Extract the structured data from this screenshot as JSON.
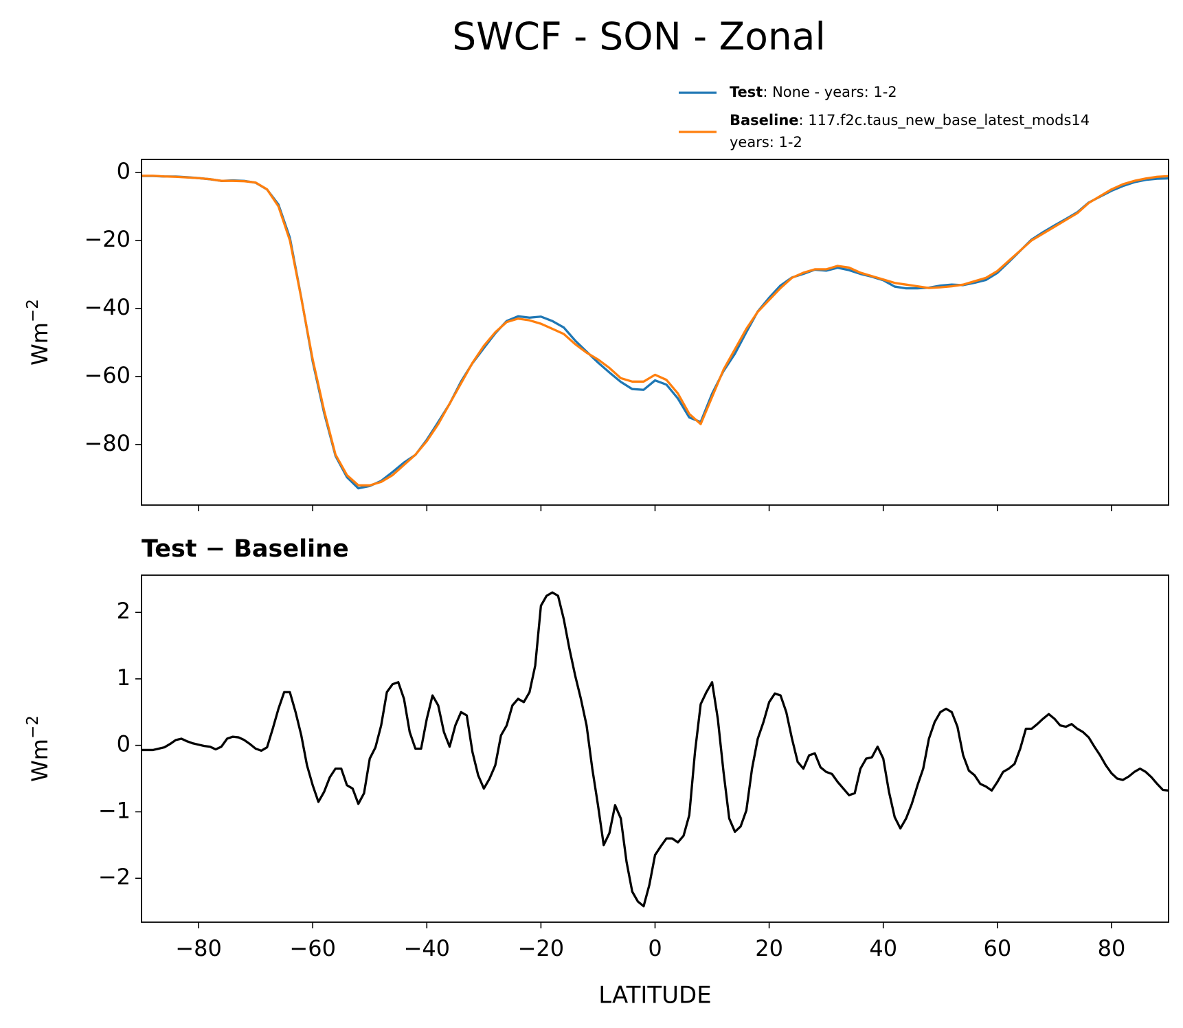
{
  "chart_data": [
    {
      "type": "line",
      "title": "SWCF - SON - Zonal",
      "ylabel": {
        "base": "Wm",
        "sup": "−2"
      },
      "x": [
        -90,
        -88,
        -86,
        -84,
        -82,
        -80,
        -78,
        -76,
        -74,
        -72,
        -70,
        -68,
        -66,
        -64,
        -62,
        -60,
        -58,
        -56,
        -54,
        -52,
        -50,
        -48,
        -46,
        -44,
        -42,
        -40,
        -38,
        -36,
        -34,
        -32,
        -30,
        -28,
        -26,
        -24,
        -22,
        -20,
        -18,
        -16,
        -14,
        -12,
        -10,
        -8,
        -6,
        -4,
        -2,
        0,
        2,
        4,
        6,
        8,
        10,
        12,
        14,
        16,
        18,
        20,
        22,
        24,
        26,
        28,
        30,
        32,
        34,
        36,
        38,
        40,
        42,
        44,
        46,
        48,
        50,
        52,
        54,
        56,
        58,
        60,
        62,
        64,
        66,
        68,
        70,
        72,
        74,
        76,
        78,
        80,
        82,
        84,
        86,
        88,
        90
      ],
      "series": [
        {
          "name": "Test",
          "label": [
            ": None - years: 1-2"
          ],
          "color": "#1f77b4",
          "values": [
            -1.07,
            -1.07,
            -1.23,
            -1.22,
            -1.44,
            -1.69,
            -2.02,
            -2.52,
            -2.37,
            -2.52,
            -3.05,
            -5.03,
            -9.45,
            -19.2,
            -36.85,
            -55.6,
            -70.7,
            -83.35,
            -89.6,
            -92.88,
            -92.2,
            -90.7,
            -88.08,
            -85.3,
            -83.05,
            -78.6,
            -73.4,
            -68.02,
            -61.5,
            -56.1,
            -51.65,
            -47.3,
            -43.7,
            -42.3,
            -42.7,
            -42.4,
            -43.7,
            -45.6,
            -49.45,
            -52.7,
            -55.9,
            -58.82,
            -61.6,
            -63.7,
            -63.92,
            -61.15,
            -62.4,
            -66.46,
            -72.05,
            -73.38,
            -65.05,
            -58.4,
            -53.3,
            -46.98,
            -40.9,
            -36.85,
            -33.25,
            -30.9,
            -29.85,
            -28.62,
            -28.9,
            -28.05,
            -28.75,
            -29.85,
            -30.68,
            -31.7,
            -33.58,
            -34.1,
            -34.1,
            -33.9,
            -33.3,
            -33,
            -33.15,
            -32.45,
            -31.62,
            -29.55,
            -26.35,
            -23.05,
            -19.75,
            -17.6,
            -15.6,
            -13.72,
            -11.75,
            -8.88,
            -7.15,
            -5.42,
            -4.02,
            -2.9,
            -2.2,
            -1.88,
            -1.78
          ]
        },
        {
          "name": "Baseline",
          "label": [
            ": 117.f2c.taus_new_base_latest_mods14",
            "years: 1-2"
          ],
          "color": "#ff7f0e",
          "values": [
            -1,
            -1,
            -1.2,
            -1.3,
            -1.5,
            -1.7,
            -2,
            -2.5,
            -2.5,
            -2.6,
            -3,
            -5,
            -10,
            -20,
            -37,
            -55,
            -70,
            -83,
            -89,
            -92,
            -92,
            -91,
            -89,
            -86,
            -83,
            -79,
            -74,
            -68,
            -62,
            -56,
            -51,
            -47,
            -44,
            -43,
            -43.5,
            -44.5,
            -46,
            -47.5,
            -50.5,
            -53,
            -55,
            -57.5,
            -60.5,
            -61.5,
            -61.5,
            -59.5,
            -61,
            -65,
            -71,
            -74,
            -66,
            -58,
            -52,
            -46,
            -41,
            -37.5,
            -34,
            -31,
            -29.5,
            -28.5,
            -28.5,
            -27.5,
            -28,
            -29.5,
            -30.5,
            -31.5,
            -32.5,
            -33,
            -33.5,
            -34,
            -33.8,
            -33.5,
            -33,
            -32,
            -31,
            -29,
            -26,
            -23,
            -20,
            -18,
            -16,
            -14,
            -12,
            -9,
            -7,
            -5,
            -3.5,
            -2.5,
            -1.8,
            -1.3,
            -1.1
          ]
        }
      ],
      "xlim": [
        -90,
        90
      ],
      "xticks": [
        -80,
        -60,
        -40,
        -20,
        0,
        20,
        40,
        60,
        80
      ],
      "xticklabels": false,
      "ylim": [
        -97.8,
        3.8
      ],
      "yticks": [
        0,
        {
          "value": -20,
          "label": "−20"
        },
        {
          "value": -40,
          "label": "−40"
        },
        {
          "value": -60,
          "label": "−60"
        },
        {
          "value": -80,
          "label": "−80"
        }
      ]
    },
    {
      "type": "line",
      "title": "Test − Baseline",
      "xlabel": "LATITUDE",
      "ylabel": {
        "base": "Wm",
        "sup": "−2"
      },
      "x": [
        -90,
        -89,
        -88,
        -87,
        -86,
        -85,
        -84,
        -83,
        -82,
        -81,
        -80,
        -79,
        -78,
        -77,
        -76,
        -75,
        -74,
        -73,
        -72,
        -71,
        -70,
        -69,
        -68,
        -67,
        -66,
        -65,
        -64,
        -63,
        -62,
        -61,
        -60,
        -59,
        -58,
        -57,
        -56,
        -55,
        -54,
        -53,
        -52,
        -51,
        -50,
        -49,
        -48,
        -47,
        -46,
        -45,
        -44,
        -43,
        -42,
        -41,
        -40,
        -39,
        -38,
        -37,
        -36,
        -35,
        -34,
        -33,
        -32,
        -31,
        -30,
        -29,
        -28,
        -27,
        -26,
        -25,
        -24,
        -23,
        -22,
        -21,
        -20,
        -19,
        -18,
        -17,
        -16,
        -15,
        -14,
        -13,
        -12,
        -11,
        -10,
        -9,
        -8,
        -7,
        -6,
        -5,
        -4,
        -3,
        -2,
        -1,
        0,
        1,
        2,
        3,
        4,
        5,
        6,
        7,
        8,
        9,
        10,
        11,
        12,
        13,
        14,
        15,
        16,
        17,
        18,
        19,
        20,
        21,
        22,
        23,
        24,
        25,
        26,
        27,
        28,
        29,
        30,
        31,
        32,
        33,
        34,
        35,
        36,
        37,
        38,
        39,
        40,
        41,
        42,
        43,
        44,
        45,
        46,
        47,
        48,
        49,
        50,
        51,
        52,
        53,
        54,
        55,
        56,
        57,
        58,
        59,
        60,
        61,
        62,
        63,
        64,
        65,
        66,
        67,
        68,
        69,
        70,
        71,
        72,
        73,
        74,
        75,
        76,
        77,
        78,
        79,
        80,
        81,
        82,
        83,
        84,
        85,
        86,
        87,
        88,
        89,
        90
      ],
      "color": "#000000",
      "values": [
        -0.07,
        -0.07,
        -0.07,
        -0.05,
        -0.03,
        0.02,
        0.08,
        0.1,
        0.06,
        0.03,
        0.01,
        -0.01,
        -0.02,
        -0.06,
        -0.02,
        0.1,
        0.13,
        0.12,
        0.08,
        0.02,
        -0.05,
        -0.08,
        -0.03,
        0.25,
        0.55,
        0.8,
        0.8,
        0.5,
        0.15,
        -0.3,
        -0.6,
        -0.85,
        -0.7,
        -0.48,
        -0.35,
        -0.35,
        -0.6,
        -0.65,
        -0.88,
        -0.72,
        -0.2,
        -0.03,
        0.3,
        0.8,
        0.92,
        0.95,
        0.7,
        0.2,
        -0.05,
        -0.05,
        0.4,
        0.75,
        0.6,
        0.2,
        -0.02,
        0.3,
        0.5,
        0.45,
        -0.1,
        -0.45,
        -0.65,
        -0.5,
        -0.3,
        0.15,
        0.3,
        0.6,
        0.7,
        0.65,
        0.8,
        1.2,
        2.1,
        2.25,
        2.3,
        2.25,
        1.9,
        1.45,
        1.05,
        0.7,
        0.3,
        -0.35,
        -0.9,
        -1.5,
        -1.32,
        -0.9,
        -1.1,
        -1.75,
        -2.2,
        -2.35,
        -2.42,
        -2.1,
        -1.65,
        -1.52,
        -1.4,
        -1.4,
        -1.46,
        -1.36,
        -1.05,
        -0.1,
        0.62,
        0.8,
        0.95,
        0.4,
        -0.4,
        -1.1,
        -1.3,
        -1.22,
        -0.98,
        -0.35,
        0.1,
        0.35,
        0.65,
        0.78,
        0.75,
        0.5,
        0.1,
        -0.25,
        -0.35,
        -0.15,
        -0.12,
        -0.33,
        -0.4,
        -0.43,
        -0.55,
        -0.65,
        -0.75,
        -0.72,
        -0.35,
        -0.2,
        -0.18,
        -0.02,
        -0.2,
        -0.7,
        -1.08,
        -1.25,
        -1.1,
        -0.88,
        -0.6,
        -0.35,
        0.1,
        0.35,
        0.5,
        0.55,
        0.5,
        0.28,
        -0.15,
        -0.38,
        -0.45,
        -0.58,
        -0.62,
        -0.68,
        -0.55,
        -0.4,
        -0.35,
        -0.28,
        -0.05,
        0.25,
        0.25,
        0.32,
        0.4,
        0.47,
        0.4,
        0.3,
        0.28,
        0.32,
        0.25,
        0.2,
        0.12,
        -0.02,
        -0.15,
        -0.3,
        -0.42,
        -0.5,
        -0.52,
        -0.47,
        -0.4,
        -0.35,
        -0.4,
        -0.48,
        -0.58,
        -0.67,
        -0.68
      ],
      "xlim": [
        -90,
        90
      ],
      "xticks": [
        {
          "value": -80,
          "label": "−80"
        },
        {
          "value": -60,
          "label": "−60"
        },
        {
          "value": -40,
          "label": "−40"
        },
        {
          "value": -20,
          "label": "−20"
        },
        0,
        20,
        40,
        60,
        80
      ],
      "xticklabels": true,
      "ylim": [
        -2.66,
        2.56
      ],
      "yticks": [
        {
          "value": -2,
          "label": "−2"
        },
        {
          "value": -1,
          "label": "−1"
        },
        0,
        1,
        2
      ]
    }
  ]
}
